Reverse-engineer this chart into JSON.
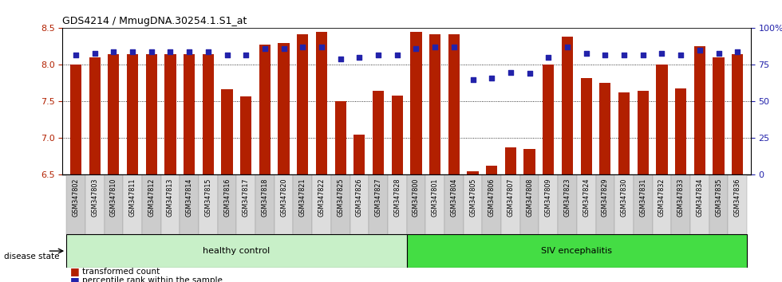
{
  "title": "GDS4214 / MmugDNA.30254.1.S1_at",
  "categories": [
    "GSM347802",
    "GSM347803",
    "GSM347810",
    "GSM347811",
    "GSM347812",
    "GSM347813",
    "GSM347814",
    "GSM347815",
    "GSM347816",
    "GSM347817",
    "GSM347818",
    "GSM347820",
    "GSM347821",
    "GSM347822",
    "GSM347825",
    "GSM347826",
    "GSM347827",
    "GSM347828",
    "GSM347800",
    "GSM347801",
    "GSM347804",
    "GSM347805",
    "GSM347806",
    "GSM347807",
    "GSM347808",
    "GSM347809",
    "GSM347823",
    "GSM347824",
    "GSM347829",
    "GSM347830",
    "GSM347831",
    "GSM347832",
    "GSM347833",
    "GSM347834",
    "GSM347835",
    "GSM347836"
  ],
  "bar_values": [
    8.0,
    8.1,
    8.15,
    8.15,
    8.15,
    8.15,
    8.15,
    8.15,
    7.67,
    7.57,
    8.28,
    8.3,
    8.42,
    8.45,
    7.5,
    7.05,
    7.65,
    7.58,
    8.45,
    8.42,
    8.42,
    6.55,
    6.62,
    6.88,
    6.85,
    8.0,
    8.38,
    7.82,
    7.76,
    7.62,
    7.65,
    8.0,
    7.68,
    8.25,
    8.1,
    8.15
  ],
  "percentile_values": [
    82,
    83,
    84,
    84,
    84,
    84,
    84,
    84,
    82,
    82,
    86,
    86,
    87,
    87,
    79,
    80,
    82,
    82,
    86,
    87,
    87,
    65,
    66,
    70,
    69,
    80,
    87,
    83,
    82,
    82,
    82,
    83,
    82,
    85,
    83,
    84
  ],
  "ylim_left": [
    6.5,
    8.5
  ],
  "ylim_right": [
    0,
    100
  ],
  "yticks_left": [
    6.5,
    7.0,
    7.5,
    8.0,
    8.5
  ],
  "yticks_right": [
    0,
    25,
    50,
    75,
    100
  ],
  "ytick_labels_right": [
    "0",
    "25",
    "50",
    "75",
    "100%"
  ],
  "bar_color": "#B22000",
  "dot_color": "#2222AA",
  "healthy_control_count": 18,
  "healthy_label": "healthy control",
  "siv_label": "SIV encephalitis",
  "disease_state_label": "disease state",
  "legend_bar_label": "transformed count",
  "legend_dot_label": "percentile rank within the sample",
  "healthy_bg_color": "#C8F0C8",
  "siv_bg_color": "#44DD44",
  "tick_bg_even": "#CCCCCC",
  "tick_bg_odd": "#DDDDDD",
  "fig_bg_color": "#FFFFFF"
}
